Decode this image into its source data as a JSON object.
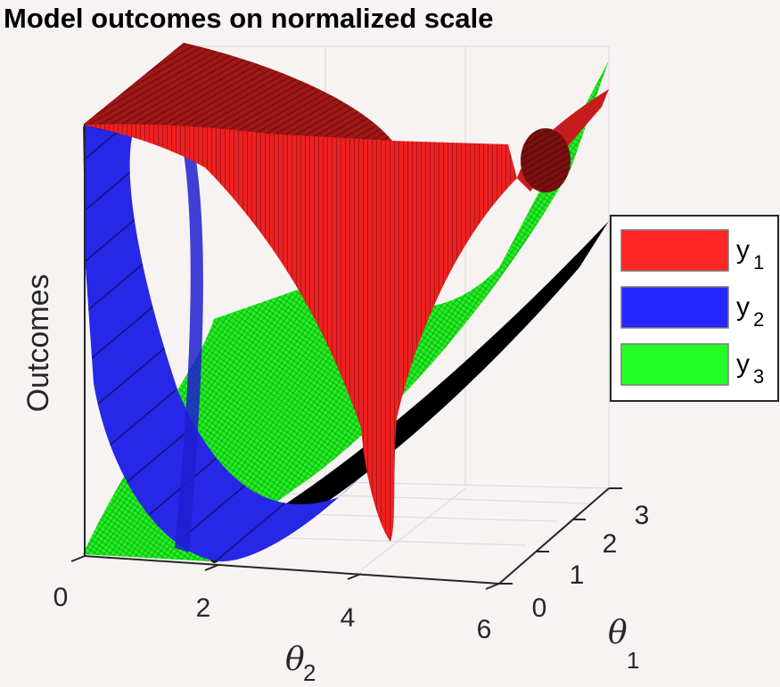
{
  "chart_data": {
    "type": "surface",
    "title": "Model outcomes on normalized scale",
    "zlabel": "Outcomes",
    "xlabel": {
      "symbol": "θ",
      "subscript": "2"
    },
    "ylabel": {
      "symbol": "θ",
      "subscript": "1"
    },
    "x_ticks": [
      "0",
      "2",
      "4",
      "6"
    ],
    "y_ticks": [
      "0",
      "1",
      "2",
      "3"
    ],
    "xlim": [
      0,
      6
    ],
    "ylim": [
      0,
      3
    ],
    "zlim": [
      0,
      1
    ],
    "grid": true,
    "legend_position": "right",
    "series": [
      {
        "label": "y",
        "subscript": "1",
        "color": "#ff2626"
      },
      {
        "label": "y",
        "subscript": "2",
        "color": "#2626ff"
      },
      {
        "label": "y",
        "subscript": "3",
        "color": "#26ff26"
      }
    ]
  }
}
